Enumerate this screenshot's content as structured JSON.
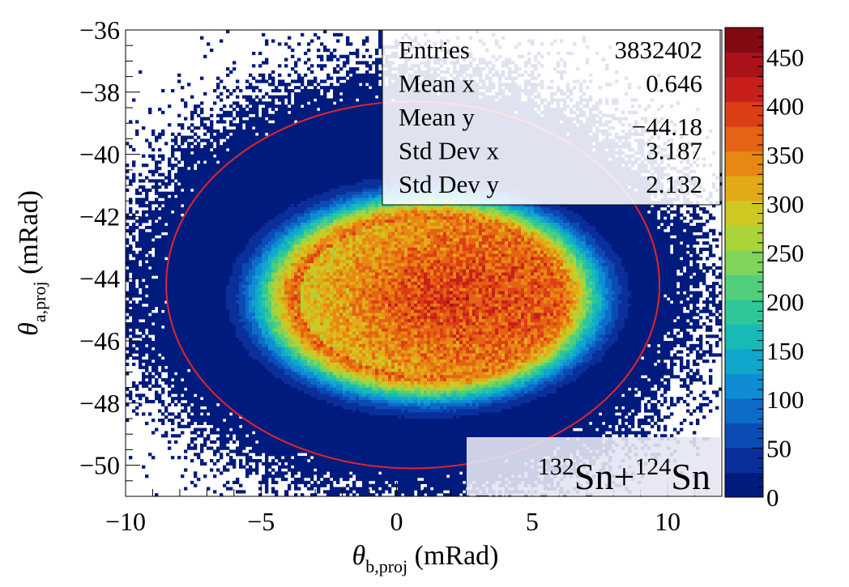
{
  "chart_data": {
    "type": "heatmap",
    "xlabel": {
      "sym": "θ",
      "sub": "b,proj",
      "unit": " (mRad)"
    },
    "ylabel": {
      "sym": "θ",
      "sub": "a,proj",
      "unit": " (mRad)"
    },
    "xlim": [
      -10,
      12
    ],
    "ylim": [
      -51,
      -36
    ],
    "xticks": [
      -10,
      -5,
      0,
      5,
      10
    ],
    "yticks": [
      -50,
      -48,
      -46,
      -44,
      -42,
      -40,
      -38,
      -36
    ],
    "x_tick_labels": [
      "−10",
      "−5",
      "0",
      "5",
      "10"
    ],
    "y_tick_labels": [
      "−50",
      "−48",
      "−46",
      "−44",
      "−42",
      "−40",
      "−38",
      "−36"
    ],
    "zlim": [
      0,
      480
    ],
    "zticks": [
      0,
      50,
      100,
      150,
      200,
      250,
      300,
      350,
      400,
      450
    ],
    "stats": [
      {
        "label": "Entries",
        "value": "3832402"
      },
      {
        "label": "Mean x",
        "value": "0.646"
      },
      {
        "label": "Mean y",
        "value": "−44.18"
      },
      {
        "label": "Std Dev x",
        "value": "3.187"
      },
      {
        "label": "Std Dev y",
        "value": "2.132"
      }
    ],
    "annotation": {
      "iso1": "132",
      "el1": "Sn",
      "plus": "+",
      "iso2": "124",
      "el2": "Sn"
    },
    "cut_ellipse": {
      "cx": 0.6,
      "cy": -44.2,
      "rx": 9.1,
      "ry": 5.9,
      "color": "#e0262a"
    },
    "distribution": {
      "mean_x": 0.646,
      "mean_y": -44.18,
      "std_x": 3.187,
      "std_y": 2.132,
      "core_center": [
        1.2,
        -44.6
      ],
      "core_half_widths": [
        4.8,
        2.5
      ],
      "peak_z": 470
    },
    "palette": [
      "#001b7e",
      "#0a2f9a",
      "#0a4bb4",
      "#0c6cc8",
      "#0f8dd4",
      "#11a7cd",
      "#18bab6",
      "#2ec79a",
      "#53cf7b",
      "#80d45a",
      "#abd43a",
      "#cfc822",
      "#e2aa17",
      "#e88713",
      "#e56314",
      "#dc3e15",
      "#c7201a",
      "#a91219",
      "#820a12"
    ]
  }
}
